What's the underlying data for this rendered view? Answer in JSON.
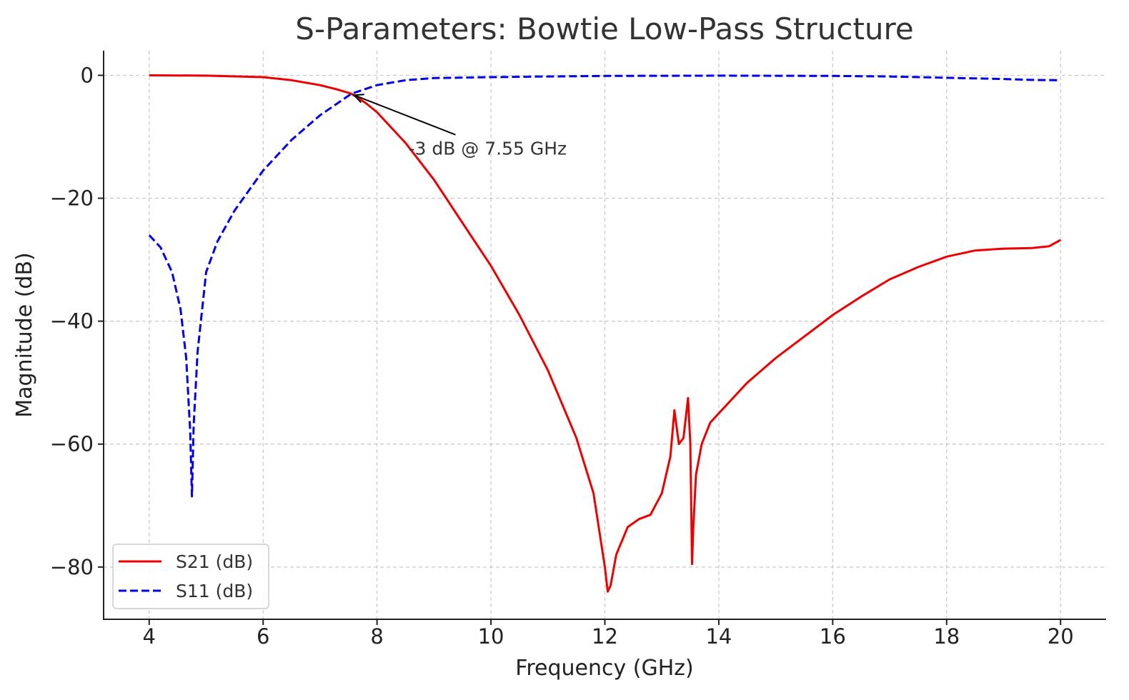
{
  "chart_data": {
    "type": "line",
    "title": "S-Parameters: Bowtie Low-Pass Structure",
    "xlabel": "Frequency (GHz)",
    "ylabel": "Magnitude (dB)",
    "xlim": [
      3.2,
      20.8
    ],
    "ylim": [
      -88.5,
      4
    ],
    "x_ticks": [
      4,
      6,
      8,
      10,
      12,
      14,
      16,
      18,
      20
    ],
    "x_tick_labels": [
      "4",
      "6",
      "8",
      "10",
      "12",
      "14",
      "16",
      "18",
      "20"
    ],
    "y_ticks": [
      0,
      -20,
      -40,
      -60,
      -80
    ],
    "y_tick_labels": [
      "0",
      "−20",
      "−40",
      "−60",
      "−80"
    ],
    "grid": true,
    "legend_position": "bottom-left",
    "series": [
      {
        "name": "S21 (dB)",
        "color": "#ee0000",
        "style": "solid",
        "x": [
          4,
          5,
          6,
          6.5,
          7,
          7.3,
          7.55,
          7.8,
          8,
          8.5,
          9,
          9.5,
          10,
          10.5,
          11,
          11.5,
          11.8,
          12.0,
          12.05,
          12.1,
          12.2,
          12.4,
          12.6,
          12.8,
          13.0,
          13.15,
          13.22,
          13.3,
          13.38,
          13.46,
          13.5,
          13.53,
          13.55,
          13.6,
          13.7,
          13.85,
          14,
          14.5,
          15,
          15.5,
          16,
          16.5,
          17,
          17.5,
          18,
          18.5,
          19,
          19.5,
          19.8,
          20
        ],
        "y": [
          0,
          -0.05,
          -0.3,
          -0.8,
          -1.6,
          -2.3,
          -3,
          -4.5,
          -6,
          -11,
          -17,
          -24,
          -31,
          -39,
          -48,
          -59,
          -68,
          -80,
          -84,
          -83,
          -78,
          -73.5,
          -72.2,
          -71.5,
          -68,
          -62,
          -54.5,
          -60,
          -59,
          -52.5,
          -60,
          -79.5,
          -74,
          -65,
          -60,
          -56.5,
          -55,
          -50,
          -46,
          -42.5,
          -39,
          -36,
          -33.2,
          -31.2,
          -29.5,
          -28.5,
          -28.2,
          -28.1,
          -27.8,
          -26.8
        ]
      },
      {
        "name": "S11 (dB)",
        "color": "#0000ee",
        "style": "dashed",
        "x": [
          4,
          4.2,
          4.4,
          4.55,
          4.65,
          4.72,
          4.75,
          4.78,
          4.85,
          5,
          5.2,
          5.5,
          6,
          6.5,
          7,
          7.55,
          8,
          8.5,
          9,
          10,
          11,
          12,
          14,
          16,
          17,
          18,
          19,
          19.5,
          20
        ],
        "y": [
          -26,
          -28,
          -32,
          -38,
          -46,
          -58,
          -68.5,
          -57,
          -45,
          -32,
          -27,
          -22,
          -15.5,
          -10.5,
          -6.5,
          -3,
          -1.6,
          -0.8,
          -0.45,
          -0.3,
          -0.2,
          -0.1,
          -0.05,
          -0.1,
          -0.2,
          -0.4,
          -0.6,
          -0.75,
          -0.8
        ]
      }
    ],
    "annotation": {
      "text": "-3 dB @ 7.55 GHz",
      "point": [
        7.55,
        -3
      ],
      "text_anchor": [
        8.55,
        -12
      ]
    }
  }
}
